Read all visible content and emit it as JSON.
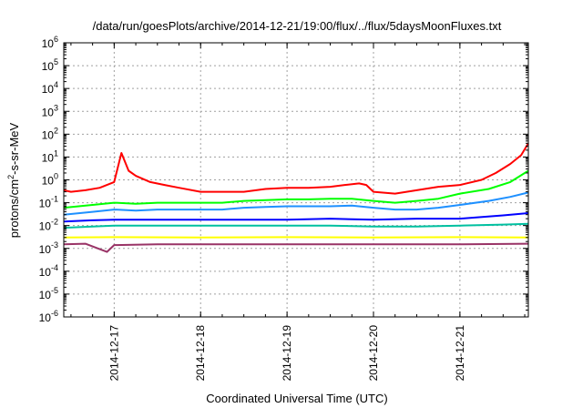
{
  "chart_data": {
    "type": "line",
    "title": "/data/run/goesPlots/archive/2014-12-21/19:00/flux/../flux/5daysMoonFluxes.txt",
    "xlabel": "Coordinated Universal Time (UTC)",
    "ylabel": "protons/cm²-s-sr-MeV",
    "ylabel_parts": {
      "pre": "protons/cm",
      "sup": "2",
      "post": "-s-sr-MeV"
    },
    "y_scale": "log",
    "ylim": [
      "1e-6",
      "1e6"
    ],
    "xlim": [
      "2014-12-16T10:00",
      "2014-12-21T19:00"
    ],
    "grid": true,
    "x_ticks": [
      {
        "value": "2014-12-17T00:00",
        "label": "2014-12-17"
      },
      {
        "value": "2014-12-18T00:00",
        "label": "2014-12-18"
      },
      {
        "value": "2014-12-19T00:00",
        "label": "2014-12-19"
      },
      {
        "value": "2014-12-20T00:00",
        "label": "2014-12-20"
      },
      {
        "value": "2014-12-21T00:00",
        "label": "2014-12-21"
      }
    ],
    "y_ticks": [
      {
        "base": "10",
        "exp": "-6"
      },
      {
        "base": "10",
        "exp": "-5"
      },
      {
        "base": "10",
        "exp": "-4"
      },
      {
        "base": "10",
        "exp": "-3"
      },
      {
        "base": "10",
        "exp": "-2"
      },
      {
        "base": "10",
        "exp": "-1"
      },
      {
        "base": "10",
        "exp": "0"
      },
      {
        "base": "10",
        "exp": "1"
      },
      {
        "base": "10",
        "exp": "2"
      },
      {
        "base": "10",
        "exp": "3"
      },
      {
        "base": "10",
        "exp": "4"
      },
      {
        "base": "10",
        "exp": "5"
      },
      {
        "base": "10",
        "exp": "6"
      }
    ],
    "series": [
      {
        "color": "#ff0000",
        "points": [
          [
            "2014-12-16T10:00",
            0.35
          ],
          [
            "2014-12-16T12:00",
            0.3
          ],
          [
            "2014-12-16T16:00",
            0.35
          ],
          [
            "2014-12-16T20:00",
            0.45
          ],
          [
            "2014-12-16T22:00",
            0.6
          ],
          [
            "2014-12-17T00:00",
            0.8
          ],
          [
            "2014-12-17T02:00",
            15
          ],
          [
            "2014-12-17T04:00",
            2.5
          ],
          [
            "2014-12-17T06:00",
            1.5
          ],
          [
            "2014-12-17T10:00",
            0.8
          ],
          [
            "2014-12-17T14:00",
            0.6
          ],
          [
            "2014-12-17T18:00",
            0.45
          ],
          [
            "2014-12-18T00:00",
            0.3
          ],
          [
            "2014-12-18T06:00",
            0.3
          ],
          [
            "2014-12-18T12:00",
            0.3
          ],
          [
            "2014-12-18T18:00",
            0.4
          ],
          [
            "2014-12-19T00:00",
            0.45
          ],
          [
            "2014-12-19T06:00",
            0.45
          ],
          [
            "2014-12-19T12:00",
            0.5
          ],
          [
            "2014-12-19T16:00",
            0.6
          ],
          [
            "2014-12-19T20:00",
            0.7
          ],
          [
            "2014-12-19T22:00",
            0.6
          ],
          [
            "2014-12-20T00:00",
            0.3
          ],
          [
            "2014-12-20T06:00",
            0.25
          ],
          [
            "2014-12-20T12:00",
            0.35
          ],
          [
            "2014-12-20T18:00",
            0.5
          ],
          [
            "2014-12-21T00:00",
            0.6
          ],
          [
            "2014-12-21T06:00",
            1.0
          ],
          [
            "2014-12-21T10:00",
            2.0
          ],
          [
            "2014-12-21T14:00",
            5.0
          ],
          [
            "2014-12-21T17:00",
            12
          ],
          [
            "2014-12-21T19:00",
            40
          ]
        ]
      },
      {
        "color": "#00ff00",
        "points": [
          [
            "2014-12-16T10:00",
            0.06
          ],
          [
            "2014-12-16T18:00",
            0.08
          ],
          [
            "2014-12-17T00:00",
            0.1
          ],
          [
            "2014-12-17T06:00",
            0.09
          ],
          [
            "2014-12-17T12:00",
            0.1
          ],
          [
            "2014-12-17T18:00",
            0.1
          ],
          [
            "2014-12-18T00:00",
            0.1
          ],
          [
            "2014-12-18T06:00",
            0.1
          ],
          [
            "2014-12-18T12:00",
            0.12
          ],
          [
            "2014-12-18T18:00",
            0.13
          ],
          [
            "2014-12-19T00:00",
            0.14
          ],
          [
            "2014-12-19T06:00",
            0.14
          ],
          [
            "2014-12-19T12:00",
            0.15
          ],
          [
            "2014-12-19T18:00",
            0.15
          ],
          [
            "2014-12-20T00:00",
            0.12
          ],
          [
            "2014-12-20T06:00",
            0.1
          ],
          [
            "2014-12-20T12:00",
            0.12
          ],
          [
            "2014-12-20T18:00",
            0.15
          ],
          [
            "2014-12-21T00:00",
            0.25
          ],
          [
            "2014-12-21T08:00",
            0.4
          ],
          [
            "2014-12-21T14:00",
            0.8
          ],
          [
            "2014-12-21T19:00",
            2.5
          ]
        ]
      },
      {
        "color": "#1e90ff",
        "points": [
          [
            "2014-12-16T10:00",
            0.03
          ],
          [
            "2014-12-16T18:00",
            0.04
          ],
          [
            "2014-12-17T00:00",
            0.05
          ],
          [
            "2014-12-17T06:00",
            0.045
          ],
          [
            "2014-12-17T12:00",
            0.05
          ],
          [
            "2014-12-17T18:00",
            0.05
          ],
          [
            "2014-12-18T00:00",
            0.05
          ],
          [
            "2014-12-18T06:00",
            0.05
          ],
          [
            "2014-12-18T12:00",
            0.06
          ],
          [
            "2014-12-18T18:00",
            0.065
          ],
          [
            "2014-12-19T00:00",
            0.07
          ],
          [
            "2014-12-19T06:00",
            0.07
          ],
          [
            "2014-12-19T12:00",
            0.07
          ],
          [
            "2014-12-19T18:00",
            0.075
          ],
          [
            "2014-12-20T00:00",
            0.06
          ],
          [
            "2014-12-20T06:00",
            0.05
          ],
          [
            "2014-12-20T12:00",
            0.05
          ],
          [
            "2014-12-20T18:00",
            0.06
          ],
          [
            "2014-12-21T00:00",
            0.08
          ],
          [
            "2014-12-21T08:00",
            0.12
          ],
          [
            "2014-12-21T14:00",
            0.18
          ],
          [
            "2014-12-21T19:00",
            0.28
          ]
        ]
      },
      {
        "color": "#0000ff",
        "points": [
          [
            "2014-12-16T10:00",
            0.015
          ],
          [
            "2014-12-16T18:00",
            0.017
          ],
          [
            "2014-12-17T00:00",
            0.018
          ],
          [
            "2014-12-17T12:00",
            0.018
          ],
          [
            "2014-12-18T00:00",
            0.018
          ],
          [
            "2014-12-18T12:00",
            0.018
          ],
          [
            "2014-12-19T00:00",
            0.018
          ],
          [
            "2014-12-19T12:00",
            0.02
          ],
          [
            "2014-12-20T00:00",
            0.018
          ],
          [
            "2014-12-20T12:00",
            0.02
          ],
          [
            "2014-12-21T00:00",
            0.02
          ],
          [
            "2014-12-21T12:00",
            0.028
          ],
          [
            "2014-12-21T19:00",
            0.035
          ]
        ]
      },
      {
        "color": "#00c0a0",
        "points": [
          [
            "2014-12-16T10:00",
            0.008
          ],
          [
            "2014-12-16T18:00",
            0.009
          ],
          [
            "2014-12-17T00:00",
            0.01
          ],
          [
            "2014-12-17T12:00",
            0.01
          ],
          [
            "2014-12-18T00:00",
            0.01
          ],
          [
            "2014-12-18T12:00",
            0.01
          ],
          [
            "2014-12-19T00:00",
            0.01
          ],
          [
            "2014-12-19T12:00",
            0.01
          ],
          [
            "2014-12-20T00:00",
            0.009
          ],
          [
            "2014-12-20T12:00",
            0.009
          ],
          [
            "2014-12-21T00:00",
            0.01
          ],
          [
            "2014-12-21T12:00",
            0.011
          ],
          [
            "2014-12-21T19:00",
            0.012
          ]
        ]
      },
      {
        "color": "#ffff00",
        "points": [
          [
            "2014-12-16T10:00",
            0.003
          ],
          [
            "2014-12-17T00:00",
            0.0031
          ],
          [
            "2014-12-18T00:00",
            0.003
          ],
          [
            "2014-12-19T00:00",
            0.0031
          ],
          [
            "2014-12-20T00:00",
            0.003
          ],
          [
            "2014-12-21T00:00",
            0.0031
          ],
          [
            "2014-12-21T19:00",
            0.003
          ]
        ]
      },
      {
        "color": "#993366",
        "points": [
          [
            "2014-12-16T10:00",
            0.0015
          ],
          [
            "2014-12-16T16:00",
            0.0016
          ],
          [
            "2014-12-16T22:00",
            0.0007
          ],
          [
            "2014-12-17T00:00",
            0.0014
          ],
          [
            "2014-12-17T12:00",
            0.0015
          ],
          [
            "2014-12-18T00:00",
            0.0015
          ],
          [
            "2014-12-18T12:00",
            0.0015
          ],
          [
            "2014-12-19T00:00",
            0.0015
          ],
          [
            "2014-12-19T12:00",
            0.0015
          ],
          [
            "2014-12-20T00:00",
            0.0015
          ],
          [
            "2014-12-20T12:00",
            0.0015
          ],
          [
            "2014-12-21T00:00",
            0.0015
          ],
          [
            "2014-12-21T19:00",
            0.0016
          ]
        ]
      }
    ]
  }
}
